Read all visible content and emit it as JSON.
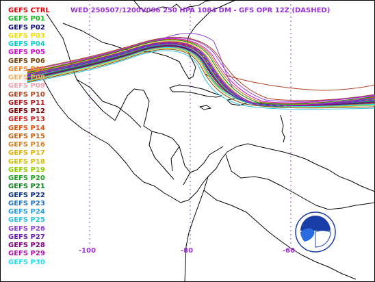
{
  "title": "WED 250507/1200V096  250 HPA 1084 DM - GFS OPR 12Z (DASHED)",
  "legend": [
    {
      "label": "GEFS CTRL",
      "color": "#e8000b"
    },
    {
      "label": "GEFS P01",
      "color": "#10b820"
    },
    {
      "label": "GEFS P02",
      "color": "#0a0a80"
    },
    {
      "label": "GEFS P03",
      "color": "#f0e000"
    },
    {
      "label": "GEFS P04",
      "color": "#10d0d0"
    },
    {
      "label": "GEFS P05",
      "color": "#d010d0"
    },
    {
      "label": "GEFS P06",
      "color": "#7a4a10"
    },
    {
      "label": "GEFS P07",
      "color": "#f08020"
    },
    {
      "label": "GEFS P08",
      "color": "#f0b060"
    },
    {
      "label": "GEFS P09",
      "color": "#f0a0b0"
    },
    {
      "label": "GEFS P10",
      "color": "#b04020"
    },
    {
      "label": "GEFS P11",
      "color": "#b01818"
    },
    {
      "label": "GEFS P12",
      "color": "#800000"
    },
    {
      "label": "GEFS P13",
      "color": "#d02020"
    },
    {
      "label": "GEFS P14",
      "color": "#e05010"
    },
    {
      "label": "GEFS P15",
      "color": "#c06010"
    },
    {
      "label": "GEFS P16",
      "color": "#d08020"
    },
    {
      "label": "GEFS P17",
      "color": "#e0b000"
    },
    {
      "label": "GEFS P18",
      "color": "#d0c000"
    },
    {
      "label": "GEFS P19",
      "color": "#90d000"
    },
    {
      "label": "GEFS P20",
      "color": "#20a020"
    },
    {
      "label": "GEFS P21",
      "color": "#108020"
    },
    {
      "label": "GEFS P22",
      "color": "#0a3080"
    },
    {
      "label": "GEFS P23",
      "color": "#2070c0"
    },
    {
      "label": "GEFS P24",
      "color": "#20a0e0"
    },
    {
      "label": "GEFS P25",
      "color": "#30c0e0"
    },
    {
      "label": "GEFS P26",
      "color": "#9040d0"
    },
    {
      "label": "GEFS P27",
      "color": "#7020b0"
    },
    {
      "label": "GEFS P28",
      "color": "#800080"
    },
    {
      "label": "GEFS P29",
      "color": "#b010b0"
    },
    {
      "label": "GEFS P30",
      "color": "#20e0f0"
    }
  ],
  "longitude_labels": [
    "-100",
    "-80",
    "-60"
  ],
  "logo_text": "NOAA",
  "colors": {
    "background": "#ffffff",
    "coastline": "#000000",
    "grid": "#a040d0",
    "title": "#9b30d9",
    "opr_run": "#8a20c0"
  }
}
